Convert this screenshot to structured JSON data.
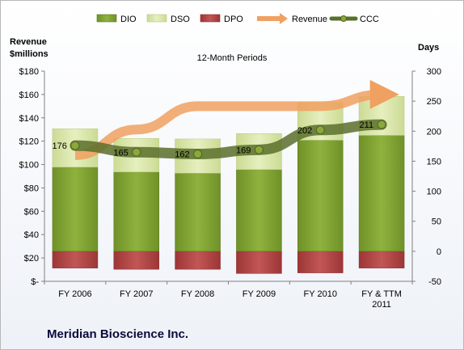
{
  "company": "Meridian Bioscience Inc.",
  "chart_data": {
    "type": "bar",
    "title": "12-Month Periods",
    "categories": [
      "FY 2006",
      "FY 2007",
      "FY 2008",
      "FY 2009",
      "FY 2010",
      "FY & TTM 2011"
    ],
    "left_axis": {
      "label": "Revenue $millions",
      "label_lines": [
        "Revenue",
        "$millions"
      ],
      "range": [
        0,
        180
      ],
      "ticks": [
        0,
        20,
        40,
        60,
        80,
        100,
        120,
        140,
        160,
        180
      ],
      "tick_labels": [
        "$-",
        "$20",
        "$40",
        "$60",
        "$80",
        "$100",
        "$120",
        "$140",
        "$160",
        "$180"
      ]
    },
    "right_axis": {
      "label": "Days",
      "range": [
        -50,
        300
      ],
      "ticks": [
        -50,
        0,
        50,
        100,
        150,
        200,
        250,
        300
      ],
      "tick_labels": [
        "-50",
        "0",
        "50",
        "100",
        "150",
        "200",
        "250",
        "300"
      ]
    },
    "legend_position": "top",
    "grid": false,
    "colors": {
      "DIO": "#7a9c2c",
      "DSO": "#d7e4a6",
      "DPO": "#b04444",
      "Revenue": "#f0a060",
      "CCC": "#5a6f2a"
    },
    "series": [
      {
        "name": "DIO",
        "type": "stacked-bar",
        "axis": "right",
        "values": [
          140,
          132,
          130,
          136,
          185,
          193
        ]
      },
      {
        "name": "DSO",
        "type": "stacked-bar",
        "axis": "right",
        "values": [
          64,
          56,
          57,
          60,
          63,
          65
        ]
      },
      {
        "name": "DPO",
        "type": "stacked-bar-negative",
        "axis": "right",
        "values": [
          -28,
          -30,
          -30,
          -37,
          -36,
          -28
        ]
      },
      {
        "name": "Revenue",
        "type": "line-arrow",
        "axis": "left",
        "values": [
          108,
          130,
          150,
          150,
          150,
          160
        ]
      },
      {
        "name": "CCC",
        "type": "line",
        "axis": "right",
        "values": [
          176,
          165,
          162,
          169,
          202,
          211
        ],
        "data_labels": [
          "176",
          "165",
          "162",
          "169",
          "202",
          "211"
        ]
      }
    ]
  }
}
